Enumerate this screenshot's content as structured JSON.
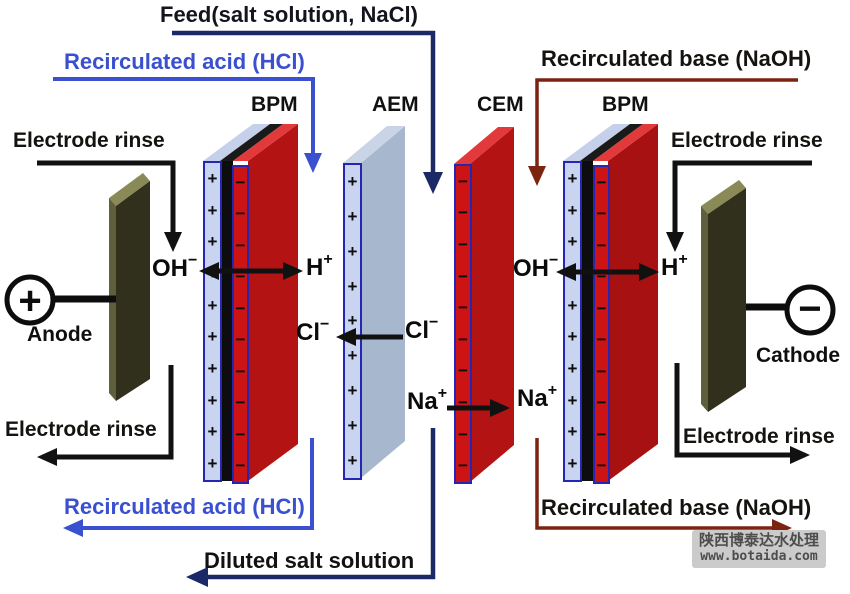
{
  "title": "Bipolar membrane electrodialysis stack diagram",
  "colors": {
    "navy": "#1b2a66",
    "blue": "#3a50cf",
    "maroon": "#7c2410",
    "black": "#111111",
    "red_face": "#cc1414",
    "red_side": "#b31313",
    "red_side_dark": "#a81111",
    "red_top": "#e23a3a",
    "lightblue": "#c9d5f0",
    "lightblue_top": "#c5d1ea",
    "strip_border": "#2626b4",
    "black_strip": "#0d0d0d",
    "aem_side": "#a7b8ce",
    "aem_top": "#c9d4e6",
    "electrode_front": "#31301c",
    "electrode_top": "#8a8a58",
    "electrode_side": "#5f5f3c",
    "watermark_bg": "#cbcbcb",
    "watermark_text": "#4d4d4d"
  },
  "streams": {
    "feed": "Feed(salt solution, NaCl)",
    "acid_top": "Recirculated acid (HCl)",
    "base_top": "Recirculated base (NaOH)",
    "rinse_top_left": "Electrode rinse",
    "rinse_top_right": "Electrode rinse",
    "rinse_bottom_left": "Electrode rinse",
    "rinse_bottom_right": "Electrode rinse",
    "acid_bottom": "Recirculated acid (HCl)",
    "base_bottom": "Recirculated base (NaOH)",
    "diluted": "Diluted salt solution"
  },
  "membranes": [
    {
      "label": "BPM"
    },
    {
      "label": "AEM"
    },
    {
      "label": "CEM"
    },
    {
      "label": "BPM"
    }
  ],
  "strips": [
    {
      "symbol": "+",
      "count": 10
    },
    {
      "symbol": "−",
      "count": 10
    },
    {
      "symbol": "+",
      "count": 9
    },
    {
      "symbol": "−",
      "count": 10
    },
    {
      "symbol": "+",
      "count": 10
    },
    {
      "symbol": "−",
      "count": 10
    }
  ],
  "ions": {
    "hydroxide": {
      "base": "OH",
      "sup": "−"
    },
    "proton": {
      "base": "H",
      "sup": "+"
    },
    "chloride": {
      "base": "Cl",
      "sup": "−"
    },
    "sodium": {
      "base": "Na",
      "sup": "+"
    }
  },
  "electrodes": {
    "anode": {
      "label": "Anode",
      "sign": "+"
    },
    "cathode": {
      "label": "Cathode",
      "sign": "−"
    }
  },
  "watermark": {
    "line1": "陕西博泰达水处理",
    "line2": "www.botaida.com"
  }
}
